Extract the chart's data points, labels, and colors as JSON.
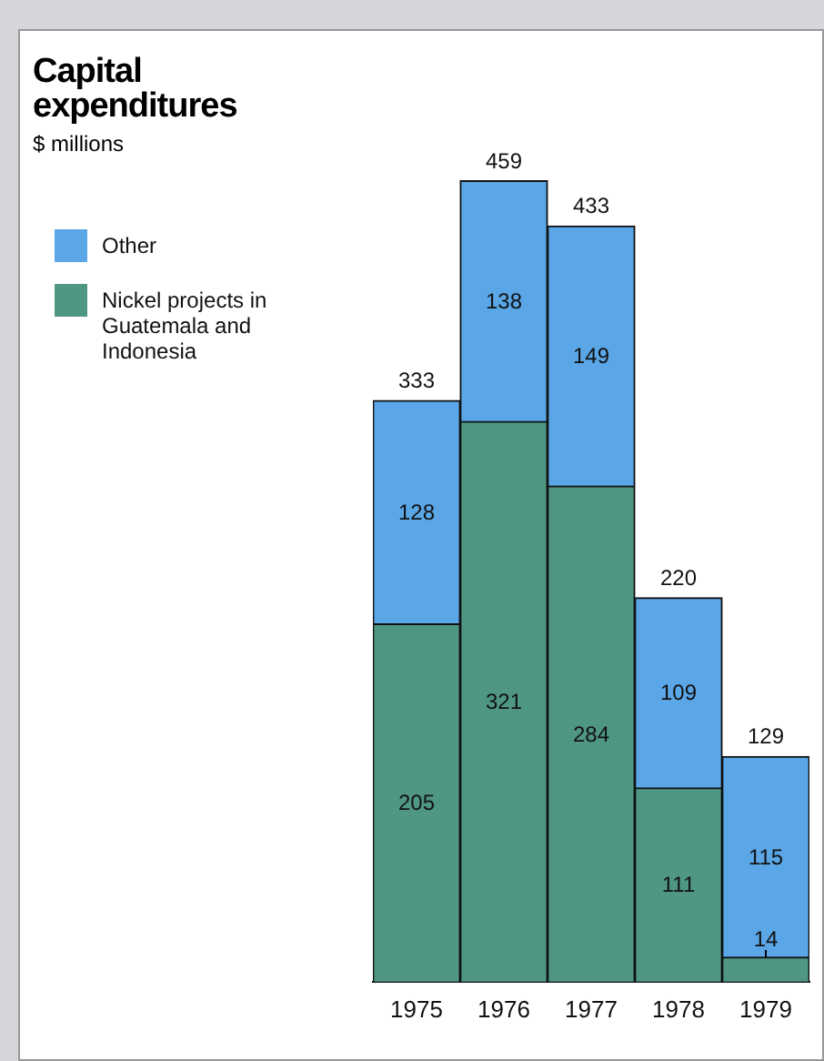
{
  "chart_data": {
    "type": "bar",
    "title": "Capital expenditures",
    "subtitle": "$ millions",
    "categories": [
      "1975",
      "1976",
      "1977",
      "1978",
      "1979"
    ],
    "stacked": true,
    "data_labels": true,
    "legend": "left",
    "tick_labels": "x",
    "grid": false,
    "series": [
      {
        "name": "Nickel projects in Guatemala and Indonesia",
        "color": "#4f9683",
        "values": [
          205,
          321,
          284,
          111,
          14
        ]
      },
      {
        "name": "Other",
        "color": "#5aa6e6",
        "values": [
          128,
          138,
          149,
          109,
          115
        ]
      }
    ],
    "totals": [
      "333",
      "459",
      "433",
      "220",
      "129"
    ]
  }
}
